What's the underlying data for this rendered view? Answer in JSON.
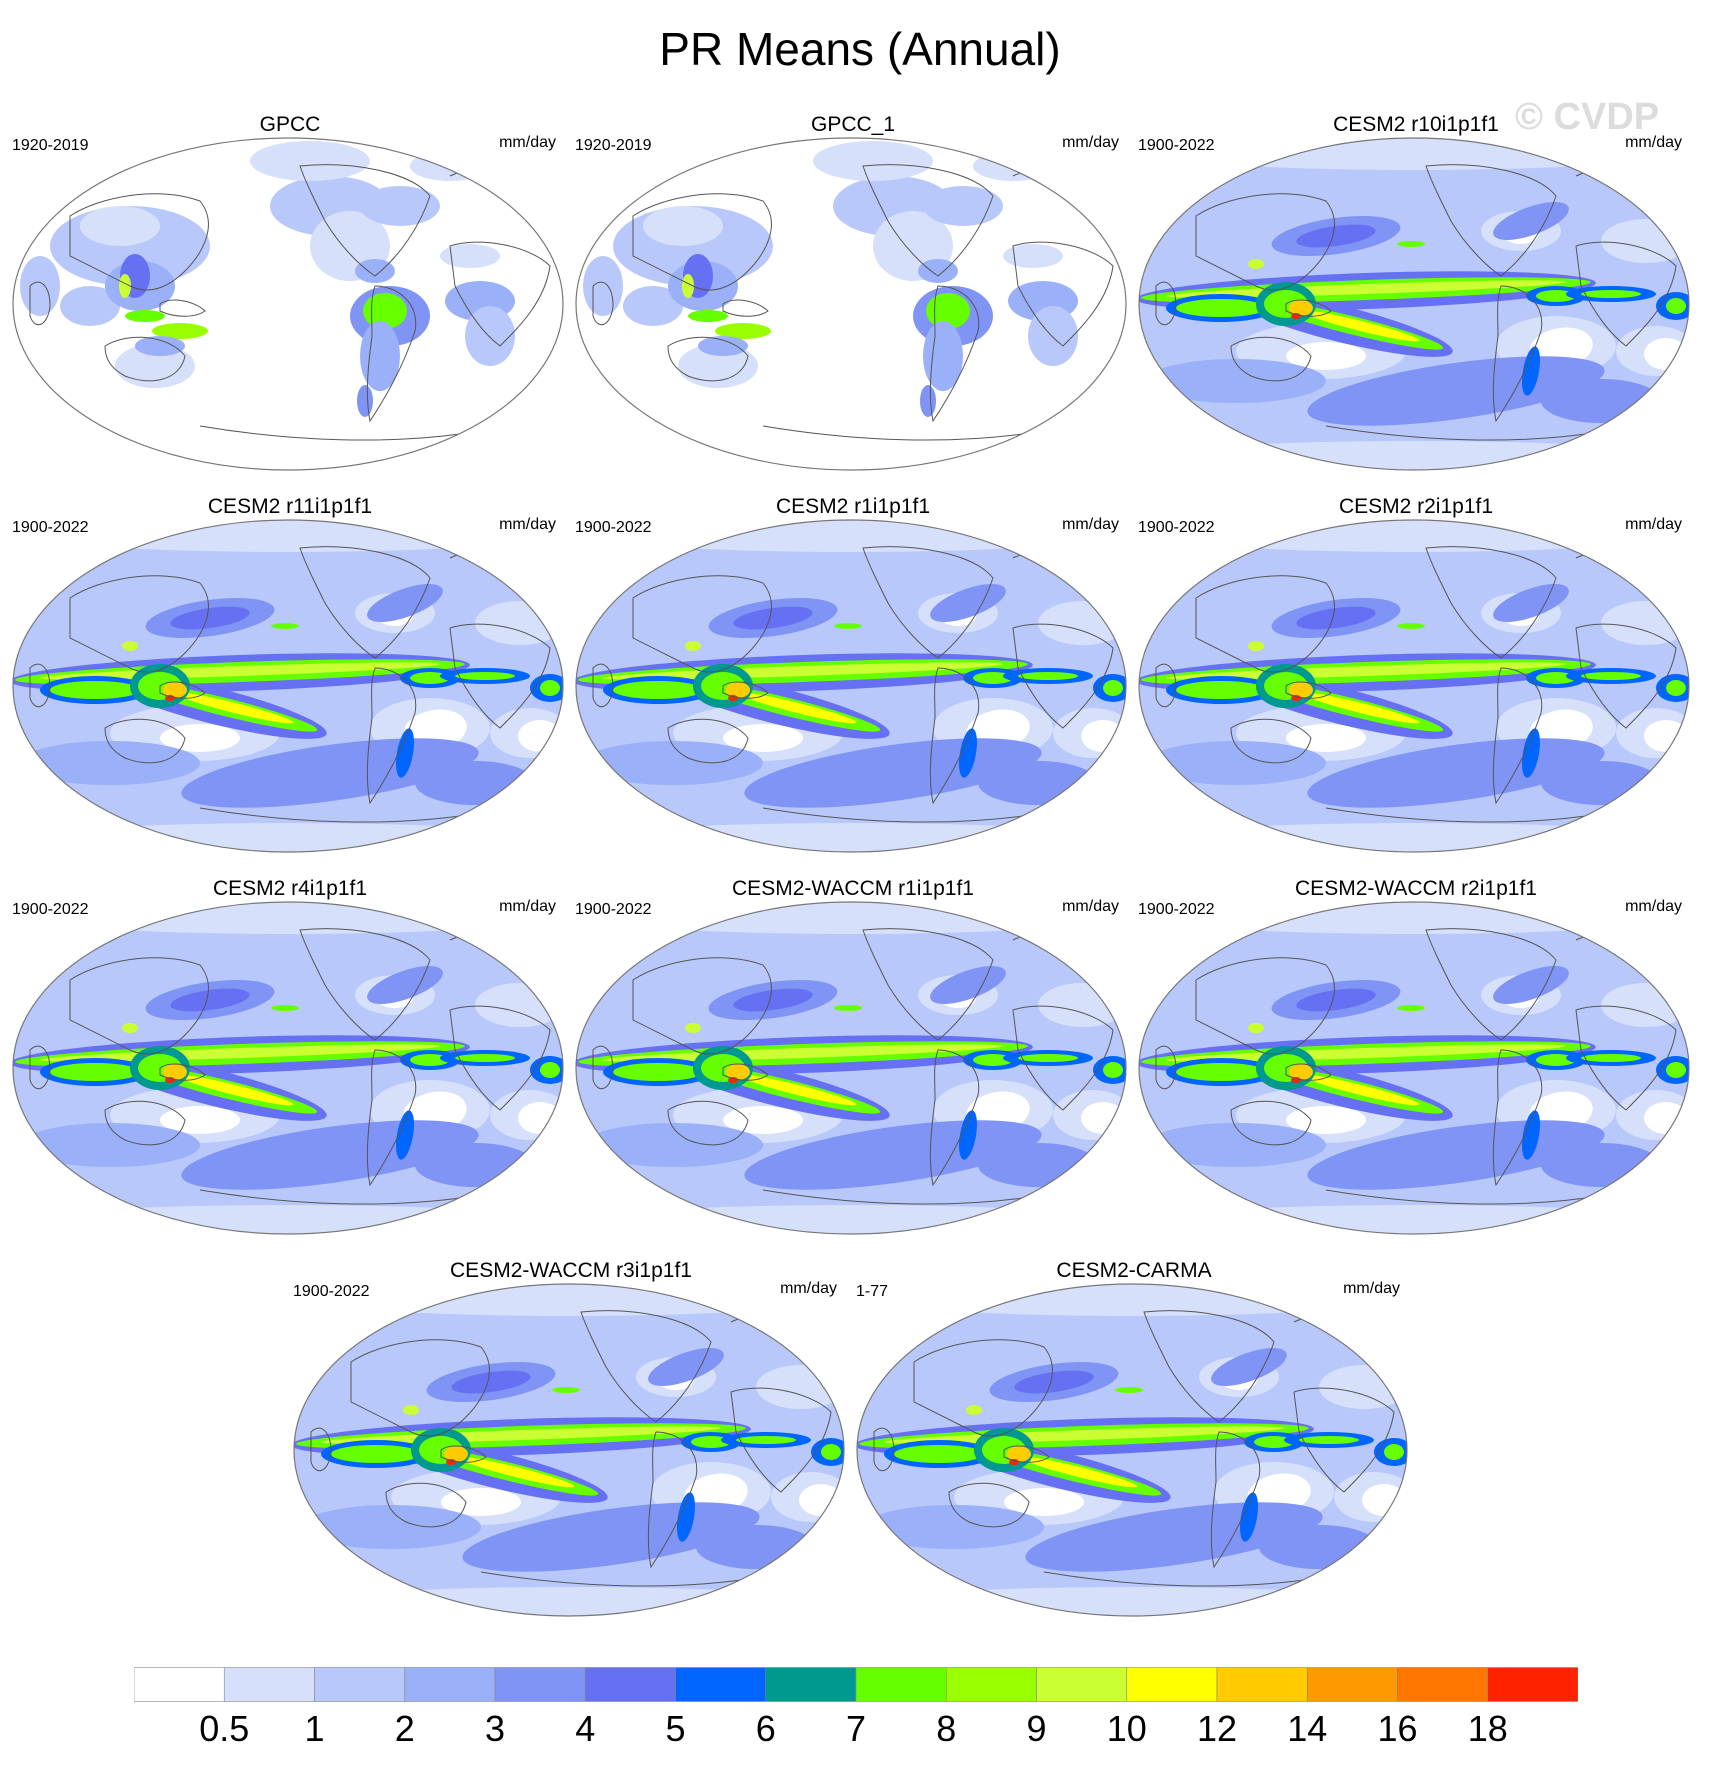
{
  "title": "PR Means (Annual)",
  "watermark": "© CVDP",
  "units": "mm/day",
  "panels": [
    {
      "title": "GPCC",
      "period": "1920-2019",
      "kind": "obs"
    },
    {
      "title": "GPCC_1",
      "period": "1920-2019",
      "kind": "obs"
    },
    {
      "title": "CESM2 r10i1p1f1",
      "period": "1900-2022",
      "kind": "model"
    },
    {
      "title": "CESM2 r11i1p1f1",
      "period": "1900-2022",
      "kind": "model"
    },
    {
      "title": "CESM2 r1i1p1f1",
      "period": "1900-2022",
      "kind": "model"
    },
    {
      "title": "CESM2 r2i1p1f1",
      "period": "1900-2022",
      "kind": "model"
    },
    {
      "title": "CESM2 r4i1p1f1",
      "period": "1900-2022",
      "kind": "model"
    },
    {
      "title": "CESM2-WACCM r1i1p1f1",
      "period": "1900-2022",
      "kind": "model"
    },
    {
      "title": "CESM2-WACCM r2i1p1f1",
      "period": "1900-2022",
      "kind": "model"
    },
    {
      "title": "CESM2-WACCM r3i1p1f1",
      "period": "1900-2022",
      "kind": "model"
    },
    {
      "title": "CESM2-CARMA",
      "period": "1-77",
      "kind": "model"
    }
  ],
  "colorbar": {
    "colors": [
      "#ffffff",
      "#d6e0fb",
      "#b8c8fa",
      "#9ab0f9",
      "#7f94f5",
      "#6670f2",
      "#0066ff",
      "#00998f",
      "#66ff00",
      "#99ff00",
      "#ccff33",
      "#ffff00",
      "#ffcc00",
      "#ff9900",
      "#ff7700",
      "#ff2200"
    ],
    "labels": [
      "0.5",
      "1",
      "2",
      "3",
      "4",
      "5",
      "6",
      "7",
      "8",
      "9",
      "10",
      "12",
      "14",
      "16",
      "18"
    ]
  }
}
